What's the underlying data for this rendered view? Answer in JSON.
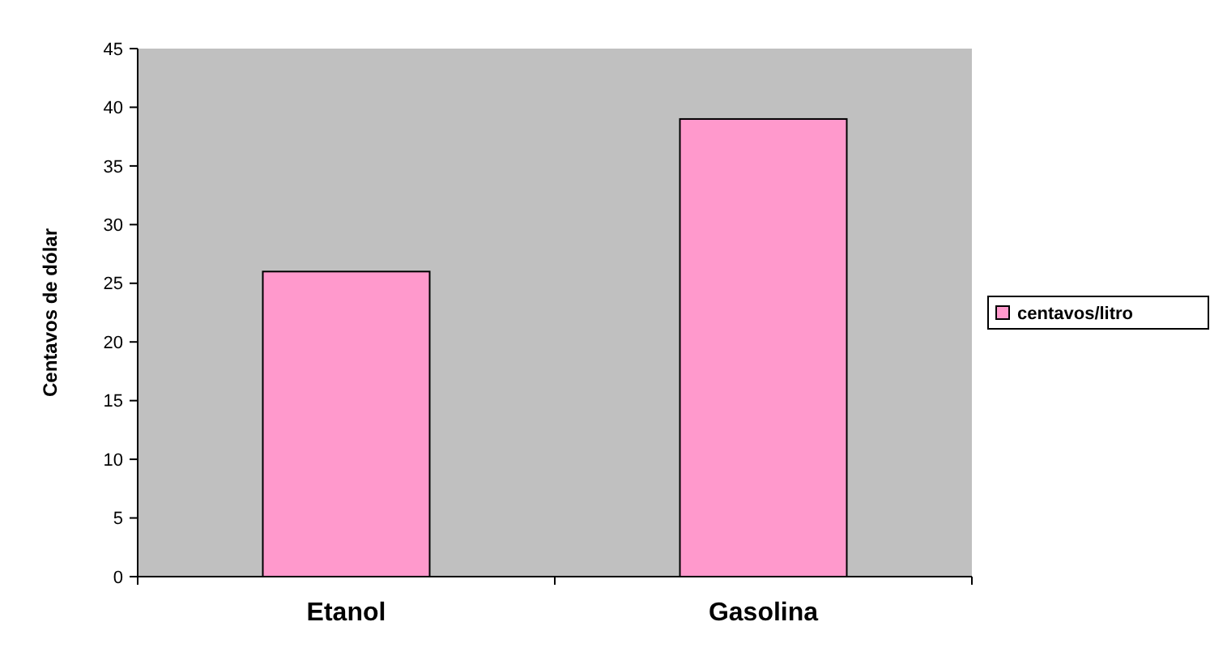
{
  "chart_data": {
    "type": "bar",
    "ylabel": "Centavos de dólar",
    "categories": [
      "Etanol",
      "Gasolina"
    ],
    "series": [
      {
        "name": "centavos/litro",
        "color": "#ff99cc",
        "values": [
          26,
          39
        ]
      }
    ],
    "ylim": [
      0,
      45
    ],
    "yticks": [
      0,
      5,
      10,
      15,
      20,
      25,
      30,
      35,
      40,
      45
    ],
    "grid": false,
    "legend": "right"
  }
}
